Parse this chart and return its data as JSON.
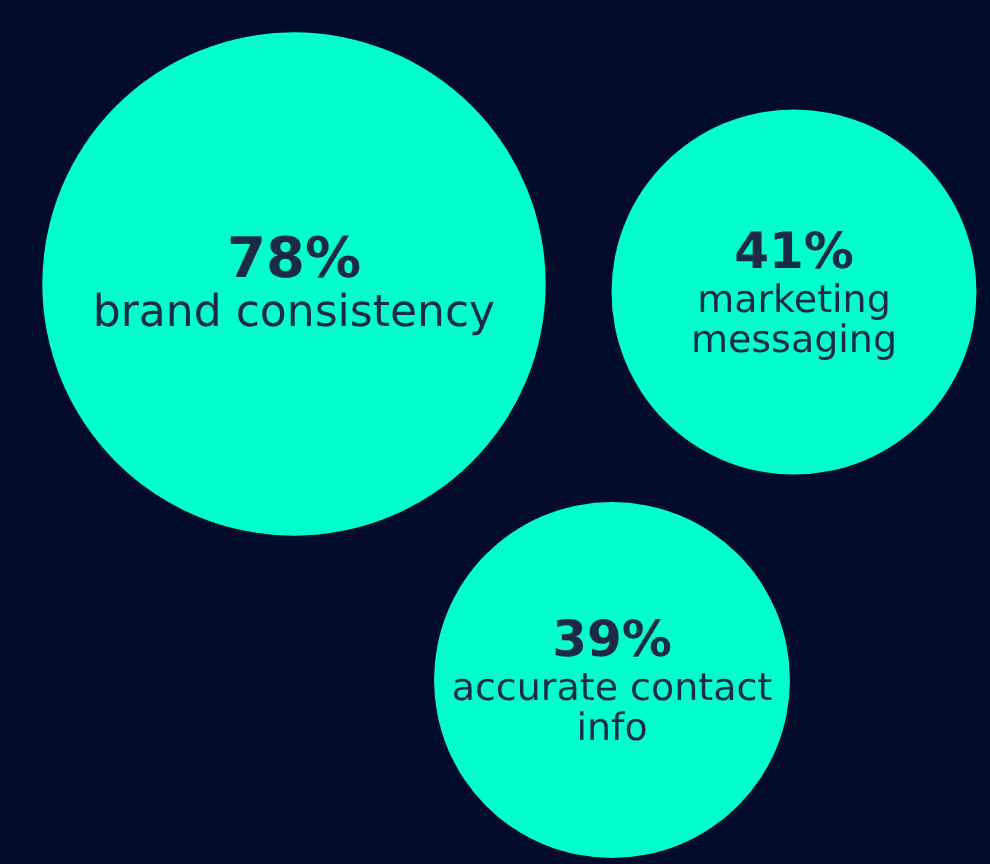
{
  "chart_data": {
    "type": "other",
    "categories": [
      "brand consistency",
      "marketing messaging",
      "accurate contact info"
    ],
    "values": [
      78,
      41,
      39
    ],
    "value_labels": [
      "78%",
      "41%",
      "39%"
    ],
    "colors": [
      "#00ffcc",
      "#00ffcc",
      "#00ffcc"
    ]
  }
}
